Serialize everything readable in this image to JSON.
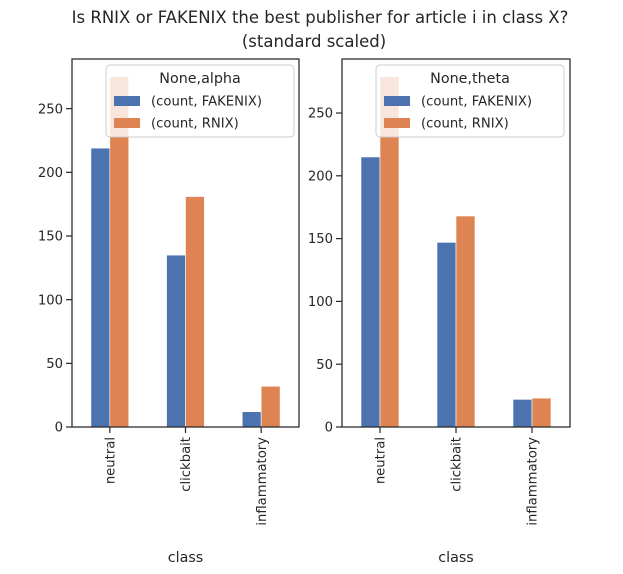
{
  "title": {
    "line1": "Is RNIX or FAKENIX the best publisher for article i in class X?",
    "line2": "(standard scaled)"
  },
  "colors": {
    "FAKENIX": "#4c72b0",
    "RNIX": "#dd8452",
    "axes_edge": "#262626"
  },
  "chart_data": [
    {
      "type": "bar",
      "categories": [
        "neutral",
        "clickbait",
        "inflammatory"
      ],
      "series": [
        {
          "name": "(count, FAKENIX)",
          "values": [
            219,
            135,
            12
          ]
        },
        {
          "name": "(count, RNIX)",
          "values": [
            275,
            181,
            32
          ]
        }
      ],
      "legend_title": "None,alpha",
      "legend_position": "top-right",
      "xlabel": "class",
      "ylabel": "",
      "yticks": [
        0,
        50,
        100,
        150,
        200,
        250
      ],
      "ylim": [
        0,
        289
      ],
      "grid": false
    },
    {
      "type": "bar",
      "categories": [
        "neutral",
        "clickbait",
        "inflammatory"
      ],
      "series": [
        {
          "name": "(count, FAKENIX)",
          "values": [
            215,
            147,
            22
          ]
        },
        {
          "name": "(count, RNIX)",
          "values": [
            279,
            168,
            23
          ]
        }
      ],
      "legend_title": "None,theta",
      "legend_position": "top-right",
      "xlabel": "class",
      "ylabel": "",
      "yticks": [
        0,
        50,
        100,
        150,
        200,
        250
      ],
      "ylim": [
        0,
        293
      ],
      "grid": false
    }
  ]
}
